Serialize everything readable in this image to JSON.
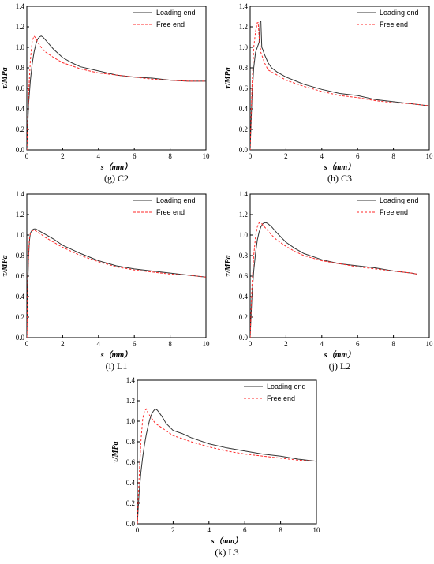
{
  "chart_data": [
    {
      "type": "line",
      "caption": "(g) C2",
      "xlabel": "s（mm）",
      "ylabel": "τ/MPa",
      "xlim": [
        0,
        10
      ],
      "ylim": [
        0,
        1.4
      ],
      "xticks": [
        0,
        2,
        4,
        6,
        8,
        10
      ],
      "yticks": [
        0.0,
        0.2,
        0.4,
        0.6,
        0.8,
        1.0,
        1.2,
        1.4
      ],
      "legend_position": "top-right",
      "series": [
        {
          "name": "Loading end",
          "color": "#333333",
          "dash": "solid",
          "x": [
            0,
            0.1,
            0.2,
            0.3,
            0.4,
            0.5,
            0.6,
            0.7,
            0.8,
            0.9,
            1.0,
            1.2,
            1.5,
            2.0,
            2.5,
            3.0,
            4.0,
            5.0,
            6.0,
            7.0,
            8.0,
            9.0,
            10.0
          ],
          "y": [
            0,
            0.45,
            0.68,
            0.84,
            0.95,
            1.03,
            1.08,
            1.1,
            1.11,
            1.1,
            1.08,
            1.04,
            0.98,
            0.9,
            0.85,
            0.81,
            0.77,
            0.73,
            0.71,
            0.7,
            0.68,
            0.67,
            0.67
          ]
        },
        {
          "name": "Free end",
          "color": "#ff2a2a",
          "dash": "dashed",
          "x": [
            0,
            0.1,
            0.2,
            0.3,
            0.4,
            0.5,
            0.6,
            0.8,
            1.0,
            1.5,
            2.0,
            3.0,
            4.0,
            5.0,
            6.0,
            7.0,
            8.0,
            9.0,
            10.0
          ],
          "y": [
            0,
            0.55,
            0.88,
            1.06,
            1.11,
            1.09,
            1.05,
            1.0,
            0.96,
            0.9,
            0.85,
            0.79,
            0.75,
            0.73,
            0.71,
            0.69,
            0.68,
            0.67,
            0.67
          ]
        }
      ]
    },
    {
      "type": "line",
      "caption": "(h) C3",
      "xlabel": "s（mm）",
      "ylabel": "τ/MPa",
      "xlim": [
        0,
        10
      ],
      "ylim": [
        0,
        1.4
      ],
      "xticks": [
        0,
        2,
        4,
        6,
        8,
        10
      ],
      "yticks": [
        0.0,
        0.2,
        0.4,
        0.6,
        0.8,
        1.0,
        1.2,
        1.4
      ],
      "legend_position": "top-right",
      "series": [
        {
          "name": "Loading end",
          "color": "#333333",
          "dash": "solid",
          "x": [
            0,
            0.1,
            0.2,
            0.3,
            0.4,
            0.5,
            0.55,
            0.6,
            0.65,
            0.7,
            0.8,
            1.0,
            1.2,
            1.5,
            2.0,
            3.0,
            4.0,
            5.0,
            6.0,
            7.0,
            8.0,
            9.0,
            10.0
          ],
          "y": [
            0,
            0.5,
            0.8,
            0.95,
            1.0,
            1.05,
            1.25,
            1.25,
            1.0,
            0.98,
            0.93,
            0.85,
            0.8,
            0.76,
            0.71,
            0.64,
            0.59,
            0.55,
            0.53,
            0.49,
            0.47,
            0.45,
            0.43
          ]
        },
        {
          "name": "Free end",
          "color": "#ff2a2a",
          "dash": "dashed",
          "x": [
            0,
            0.1,
            0.2,
            0.3,
            0.4,
            0.45,
            0.5,
            0.6,
            0.8,
            1.0,
            1.5,
            2.0,
            3.0,
            4.0,
            5.0,
            6.0,
            7.0,
            8.0,
            9.0,
            10.0
          ],
          "y": [
            0,
            0.6,
            1.0,
            1.15,
            1.24,
            1.24,
            1.1,
            0.95,
            0.85,
            0.78,
            0.73,
            0.68,
            0.62,
            0.57,
            0.53,
            0.51,
            0.48,
            0.46,
            0.45,
            0.43
          ]
        }
      ]
    },
    {
      "type": "line",
      "caption": "(i) L1",
      "xlabel": "s（mm）",
      "ylabel": "τ/MPa",
      "xlim": [
        0,
        10
      ],
      "ylim": [
        0,
        1.4
      ],
      "xticks": [
        0,
        2,
        4,
        6,
        8,
        10
      ],
      "yticks": [
        0.0,
        0.2,
        0.4,
        0.6,
        0.8,
        1.0,
        1.2,
        1.4
      ],
      "legend_position": "top-right",
      "series": [
        {
          "name": "Loading end",
          "color": "#333333",
          "dash": "solid",
          "x": [
            0,
            0.05,
            0.1,
            0.15,
            0.2,
            0.3,
            0.4,
            0.5,
            0.7,
            1.0,
            1.5,
            2.0,
            3.0,
            4.0,
            5.0,
            6.0,
            7.0,
            8.0,
            9.0,
            10.0
          ],
          "y": [
            0,
            0.5,
            0.8,
            0.95,
            1.02,
            1.05,
            1.06,
            1.06,
            1.04,
            1.01,
            0.96,
            0.9,
            0.82,
            0.75,
            0.7,
            0.67,
            0.65,
            0.63,
            0.61,
            0.59
          ]
        },
        {
          "name": "Free end",
          "color": "#ff2a2a",
          "dash": "dashed",
          "x": [
            0,
            0.05,
            0.1,
            0.15,
            0.2,
            0.3,
            0.4,
            0.5,
            0.7,
            1.0,
            1.5,
            2.0,
            3.0,
            4.0,
            5.0,
            6.0,
            7.0,
            8.0,
            9.0,
            10.0
          ],
          "y": [
            0,
            0.55,
            0.85,
            0.97,
            1.02,
            1.04,
            1.05,
            1.04,
            1.02,
            0.98,
            0.93,
            0.88,
            0.8,
            0.74,
            0.69,
            0.66,
            0.64,
            0.62,
            0.61,
            0.59
          ]
        }
      ]
    },
    {
      "type": "line",
      "caption": "(j) L2",
      "xlabel": "s（mm）",
      "ylabel": "τ/MPa",
      "xlim": [
        0,
        10
      ],
      "ylim": [
        0,
        1.4
      ],
      "xticks": [
        0,
        2,
        4,
        6,
        8,
        10
      ],
      "yticks": [
        0.0,
        0.2,
        0.4,
        0.6,
        0.8,
        1.0,
        1.2,
        1.4
      ],
      "legend_position": "top-right",
      "series": [
        {
          "name": "Loading end",
          "color": "#333333",
          "dash": "solid",
          "x": [
            0,
            0.1,
            0.2,
            0.3,
            0.4,
            0.5,
            0.6,
            0.7,
            0.8,
            0.9,
            1.0,
            1.2,
            1.5,
            2.0,
            2.5,
            3.0,
            4.0,
            5.0,
            6.0,
            7.0,
            8.0,
            9.0,
            9.3
          ],
          "y": [
            0,
            0.4,
            0.65,
            0.82,
            0.95,
            1.03,
            1.08,
            1.11,
            1.12,
            1.12,
            1.11,
            1.08,
            1.02,
            0.93,
            0.87,
            0.82,
            0.76,
            0.72,
            0.7,
            0.68,
            0.65,
            0.63,
            0.62
          ]
        },
        {
          "name": "Free end",
          "color": "#ff2a2a",
          "dash": "dashed",
          "x": [
            0,
            0.1,
            0.2,
            0.3,
            0.4,
            0.5,
            0.6,
            0.7,
            0.8,
            1.0,
            1.2,
            1.5,
            2.0,
            2.5,
            3.0,
            4.0,
            5.0,
            6.0,
            7.0,
            8.0,
            9.0,
            9.3
          ],
          "y": [
            0,
            0.5,
            0.8,
            0.98,
            1.08,
            1.12,
            1.12,
            1.1,
            1.08,
            1.04,
            1.0,
            0.95,
            0.89,
            0.84,
            0.8,
            0.75,
            0.72,
            0.69,
            0.67,
            0.65,
            0.63,
            0.62
          ]
        }
      ]
    },
    {
      "type": "line",
      "caption": "(k) L3",
      "xlabel": "s（mm）",
      "ylabel": "τ/MPa",
      "xlim": [
        0,
        10
      ],
      "ylim": [
        0,
        1.4
      ],
      "xticks": [
        0,
        2,
        4,
        6,
        8,
        10
      ],
      "yticks": [
        0.0,
        0.2,
        0.4,
        0.6,
        0.8,
        1.0,
        1.2,
        1.4
      ],
      "legend_position": "top-right",
      "series": [
        {
          "name": "Loading end",
          "color": "#333333",
          "dash": "solid",
          "x": [
            0,
            0.1,
            0.2,
            0.3,
            0.4,
            0.5,
            0.6,
            0.7,
            0.8,
            0.9,
            1.0,
            1.1,
            1.2,
            1.4,
            1.6,
            2.0,
            2.5,
            3.0,
            4.0,
            5.0,
            6.0,
            7.0,
            8.0,
            9.0,
            10.0
          ],
          "y": [
            0,
            0.3,
            0.5,
            0.65,
            0.77,
            0.87,
            0.95,
            1.02,
            1.07,
            1.1,
            1.12,
            1.11,
            1.09,
            1.04,
            0.98,
            0.91,
            0.88,
            0.84,
            0.78,
            0.74,
            0.71,
            0.68,
            0.66,
            0.63,
            0.61
          ]
        },
        {
          "name": "Free end",
          "color": "#ff2a2a",
          "dash": "dashed",
          "x": [
            0,
            0.1,
            0.2,
            0.3,
            0.4,
            0.5,
            0.6,
            0.8,
            1.0,
            1.5,
            2.0,
            3.0,
            4.0,
            5.0,
            6.0,
            7.0,
            8.0,
            9.0,
            10.0
          ],
          "y": [
            0,
            0.45,
            0.8,
            1.02,
            1.1,
            1.12,
            1.08,
            1.03,
            0.98,
            0.92,
            0.86,
            0.8,
            0.75,
            0.71,
            0.68,
            0.66,
            0.64,
            0.62,
            0.61
          ]
        }
      ]
    }
  ]
}
